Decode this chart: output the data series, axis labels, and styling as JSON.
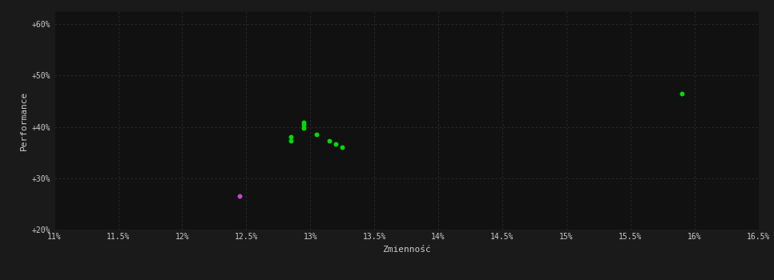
{
  "background_color": "#1a1a1a",
  "plot_bg_color": "#111111",
  "grid_color": "#2e2e2e",
  "text_color": "#cccccc",
  "xlabel": "Zmienność",
  "ylabel": "Performance",
  "xlim": [
    0.11,
    0.165
  ],
  "ylim": [
    0.2,
    0.625
  ],
  "xticks": [
    0.11,
    0.115,
    0.12,
    0.125,
    0.13,
    0.135,
    0.14,
    0.145,
    0.15,
    0.155,
    0.16,
    0.165
  ],
  "yticks": [
    0.2,
    0.3,
    0.4,
    0.5,
    0.6
  ],
  "xtick_labels": [
    "11%",
    "11.5%",
    "12%",
    "12.5%",
    "13%",
    "13.5%",
    "14%",
    "14.5%",
    "15%",
    "15.5%",
    "16%",
    "16.5%"
  ],
  "ytick_labels": [
    "+20%",
    "+30%",
    "+40%",
    "+50%",
    "+60%"
  ],
  "green_points": [
    [
      0.1285,
      0.38
    ],
    [
      0.1285,
      0.373
    ],
    [
      0.1295,
      0.398
    ],
    [
      0.1295,
      0.404
    ],
    [
      0.1295,
      0.408
    ],
    [
      0.1305,
      0.385
    ],
    [
      0.1315,
      0.373
    ],
    [
      0.132,
      0.366
    ],
    [
      0.1325,
      0.36
    ],
    [
      0.159,
      0.465
    ]
  ],
  "magenta_points": [
    [
      0.1245,
      0.265
    ]
  ],
  "green_color": "#00dd00",
  "magenta_color": "#cc44cc",
  "marker_size": 18,
  "font_family": "monospace"
}
